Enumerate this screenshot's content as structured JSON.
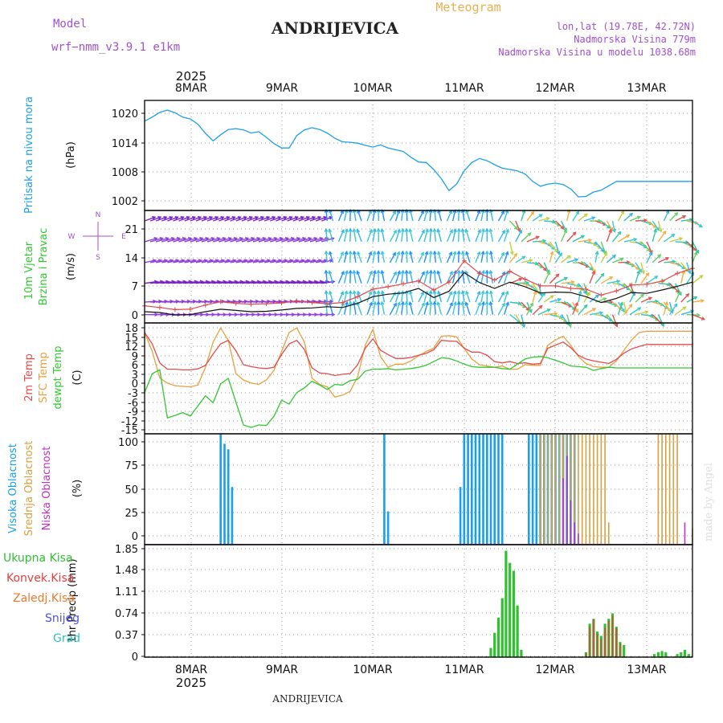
{
  "header": {
    "model_label": "Model",
    "model_name": "wrf−nmm_v3.9.1  e1km",
    "station": "ANDRIJEVICA",
    "product": "Meteogram",
    "lonlat": "lon,lat (19.78E, 42.72N)",
    "elevation": "Nadmorska Visina 779m",
    "model_elevation": "Nadmorska Visina u modelu 1038.68m",
    "footer_station": "ANDRIJEVICA",
    "credit": "made by Angel"
  },
  "time_axis": {
    "year": "2025",
    "labels": [
      "8MAR",
      "9MAR",
      "10MAR",
      "11MAR",
      "12MAR",
      "13MAR"
    ],
    "start_hours": 0,
    "end_hours": 144
  },
  "colors": {
    "pressure": "#1aa0e8",
    "temp2m": "#e84a4a",
    "sfc": "#e8a040",
    "dewpt": "#30c830",
    "wind10m": "#101010",
    "high_cloud": "#1aa0e8",
    "mid_cloud": "#d8a040",
    "low_cloud": "#c030c0",
    "total_precip": "#30c030",
    "convective": "#e04040",
    "freezing": "#f07828",
    "snow": "#5050e0",
    "hail": "#30c0c0",
    "wind_label": "#30c830",
    "axis_purple": "#a050d0"
  },
  "chart_data": [
    {
      "type": "line",
      "panel": "pressure",
      "ylabel_main": "Pritisak na nivou mora",
      "ylabel_unit": "(hPa)",
      "yticks": [
        "1020",
        "1014",
        "1008",
        "1002"
      ],
      "ylim": [
        999,
        1024
      ],
      "x": [
        0,
        2,
        4,
        6,
        8,
        10,
        12,
        14,
        16,
        18,
        20,
        22,
        24,
        26,
        28,
        30,
        32,
        34,
        36,
        38,
        40,
        42,
        44,
        46,
        48,
        50,
        52,
        54,
        56,
        58,
        60,
        62,
        64,
        66,
        68,
        70,
        72,
        74,
        76,
        78,
        80,
        82,
        84,
        86,
        88,
        90,
        92,
        94,
        96,
        98,
        100,
        102,
        104,
        106,
        108,
        110,
        112,
        114,
        116,
        118,
        120,
        122,
        124,
        126,
        128,
        130,
        132,
        134,
        136,
        138,
        140,
        142,
        144
      ],
      "series": [
        {
          "values": [
            1019.3,
            1020.2,
            1021.3,
            1021.8,
            1021.2,
            1020.2,
            1019.8,
            1018.6,
            1016.5,
            1014.8,
            1016.2,
            1017.4,
            1017.6,
            1017.3,
            1016.6,
            1016.9,
            1015.6,
            1014.2,
            1013.2,
            1013.2,
            1016.0,
            1017.3,
            1017.8,
            1017.4,
            1016.6,
            1015.4,
            1014.6,
            1014.5,
            1014.3,
            1013.8,
            1013.4,
            1013.9,
            1013.2,
            1012.8,
            1012.4,
            1011.1,
            1010.0,
            1009.9,
            1008.3,
            1006.2,
            1003.5,
            1005.0,
            1008.0,
            1009.9,
            1010.8,
            1010.3,
            1009.4,
            1008.6,
            1008.3,
            1008.0,
            1007.3,
            1005.6,
            1004.5,
            1005.0,
            1005.2,
            1004.9,
            1003.9,
            1002.1,
            1002.2,
            1003.2,
            1003.6,
            1004.6,
            1005.6,
            1005.6,
            1005.6,
            1005.6,
            1005.6,
            1005.6,
            1005.6,
            1005.6,
            1005.6,
            1005.6,
            1005.6
          ]
        }
      ]
    },
    {
      "type": "line",
      "panel": "wind",
      "ylabel_main": "10m Vjetar",
      "ylabel_sub": "Brzina i Pravac",
      "ylabel_unit": "(m/s)",
      "compass": [
        "N",
        "W",
        "E",
        "S"
      ],
      "yticks": [
        "21",
        "14",
        "7",
        "0"
      ],
      "ylim": [
        -1.5,
        25.5
      ],
      "x": [
        0,
        4,
        8,
        12,
        16,
        20,
        24,
        28,
        32,
        36,
        40,
        44,
        48,
        52,
        56,
        60,
        64,
        68,
        72,
        76,
        80,
        84,
        88,
        92,
        96,
        100,
        104,
        108,
        112,
        116,
        120,
        124,
        128,
        132,
        136,
        140,
        144
      ],
      "series": [
        {
          "values": [
            1.2,
            1.0,
            0.4,
            0.5,
            1.2,
            1.8,
            1.5,
            1.2,
            1.3,
            1.6,
            2.0,
            2.1,
            2.4,
            2.2,
            3.2,
            4.8,
            5.4,
            5.7,
            6.8,
            4.6,
            6.1,
            10.6,
            8.2,
            6.8,
            8.3,
            7.2,
            5.7,
            5.9,
            5.8,
            4.8,
            3.4,
            4.4,
            5.8,
            5.6,
            6.4,
            7.3,
            8.3
          ]
        },
        {
          "values": [
            2.6,
            2.2,
            1.7,
            1.8,
            2.8,
            3.6,
            3.2,
            3.0,
            3.1,
            3.3,
            3.8,
            3.4,
            3.1,
            3.4,
            4.8,
            6.6,
            7.2,
            7.9,
            8.6,
            6.4,
            8.3,
            13.4,
            10.4,
            8.8,
            10.9,
            9.0,
            7.4,
            7.4,
            6.8,
            6.6,
            5.2,
            6.2,
            7.6,
            7.8,
            8.5,
            10.4,
            11.6
          ]
        }
      ]
    },
    {
      "type": "line",
      "panel": "temperature",
      "ylabel_t2m": "2m Temp",
      "ylabel_sfc": "SFC Temp",
      "ylabel_dew": "dewpt Temp",
      "ylabel_unit": "(C)",
      "yticks": [
        "18",
        "15",
        "12",
        "9",
        "6",
        "3",
        "0",
        "-3",
        "-6",
        "-9",
        "-12",
        "-15"
      ],
      "ylim": [
        -16,
        19
      ],
      "x": [
        0,
        2,
        4,
        6,
        8,
        10,
        12,
        14,
        16,
        18,
        20,
        22,
        24,
        26,
        28,
        30,
        32,
        34,
        36,
        38,
        40,
        42,
        44,
        46,
        48,
        50,
        52,
        54,
        56,
        58,
        60,
        62,
        64,
        66,
        68,
        70,
        72,
        74,
        76,
        78,
        80,
        82,
        84,
        86,
        88,
        90,
        92,
        94,
        96,
        98,
        100,
        102,
        104,
        106,
        108,
        110,
        112,
        114,
        116,
        118,
        120,
        122,
        124,
        126,
        128,
        130,
        132,
        134,
        136,
        138,
        140,
        142,
        144
      ],
      "series": [
        {
          "values": [
            16.0,
            12.4,
            6.4,
            4.4,
            4.4,
            4.2,
            4.2,
            4.5,
            5.6,
            9.2,
            12.4,
            13.5,
            10.2,
            5.8,
            5.2,
            4.8,
            4.6,
            5.0,
            9.0,
            12.4,
            13.5,
            10.6,
            4.8,
            3.2,
            3.0,
            2.4,
            2.8,
            3.0,
            5.8,
            11.0,
            14.0,
            10.4,
            9.0,
            7.8,
            7.8,
            8.1,
            8.8,
            9.4,
            10.5,
            13.5,
            13.3,
            13.2,
            11.0,
            9.8,
            9.8,
            8.8,
            6.8,
            6.4,
            6.8,
            6.2,
            6.4,
            6.0,
            6.2,
            11.0,
            12.0,
            13.0,
            11.2,
            8.8,
            7.6,
            7.0,
            6.6,
            6.2,
            7.5,
            9.5,
            10.8,
            11.6,
            12.2,
            12.2,
            12.2,
            12.2,
            12.2,
            12.2,
            12.2
          ]
        },
        {
          "values": [
            16.0,
            10.0,
            1.6,
            0.0,
            -0.8,
            -1.0,
            -1.2,
            -0.6,
            5.0,
            13.0,
            17.4,
            13.5,
            3.0,
            1.0,
            0.0,
            -0.4,
            1.0,
            4.0,
            10.0,
            16.0,
            17.4,
            13.0,
            1.6,
            -0.4,
            -1.2,
            -4.4,
            -3.8,
            -2.6,
            2.0,
            12.0,
            17.0,
            8.4,
            5.0,
            6.0,
            6.0,
            7.0,
            8.6,
            10.0,
            11.0,
            14.8,
            15.0,
            14.6,
            11.0,
            7.6,
            5.8,
            5.4,
            5.0,
            5.4,
            4.4,
            4.4,
            5.8,
            5.6,
            5.6,
            12.0,
            13.6,
            14.8,
            12.0,
            8.4,
            6.2,
            5.2,
            5.0,
            5.0,
            7.0,
            10.4,
            13.6,
            16.0,
            16.4,
            16.4,
            16.4,
            16.4,
            16.4,
            16.4,
            16.4
          ]
        },
        {
          "values": [
            -3.0,
            3.0,
            4.2,
            -11.0,
            -10.2,
            -9.3,
            -10.4,
            -7.2,
            -4.0,
            -6.2,
            -0.2,
            1.5,
            -6.0,
            -13.2,
            -14.0,
            -13.2,
            -13.4,
            -10.5,
            -5.4,
            -6.6,
            -3.0,
            -1.5,
            0.6,
            -0.6,
            -2.0,
            -0.4,
            -0.6,
            0.8,
            1.2,
            3.8,
            4.4,
            4.4,
            4.6,
            4.2,
            4.4,
            4.6,
            5.0,
            5.6,
            6.8,
            8.0,
            7.8,
            7.0,
            6.0,
            5.2,
            5.0,
            5.0,
            5.0,
            4.6,
            4.4,
            6.0,
            7.6,
            8.2,
            8.4,
            8.0,
            7.2,
            6.4,
            5.4,
            5.2,
            5.0,
            4.0,
            4.6,
            5.0,
            4.8,
            4.8,
            4.8,
            4.8,
            4.8,
            4.8,
            4.8,
            4.8,
            4.8,
            4.8,
            4.8
          ]
        }
      ]
    },
    {
      "type": "bar",
      "panel": "cloud",
      "ylabel_high": "Visoka Oblacnost",
      "ylabel_mid": "Srednja Oblacnost",
      "ylabel_low": "Niska Oblacnost",
      "ylabel_unit": "(%)",
      "yticks": [
        "100",
        "75",
        "50",
        "25",
        "0"
      ],
      "ylim": [
        0,
        100
      ],
      "series": [
        {
          "x": [
            20,
            21,
            22,
            23,
            24,
            63,
            64,
            83,
            84,
            85,
            86,
            87,
            88,
            89,
            90,
            91,
            92,
            93,
            94,
            101,
            102,
            103,
            104,
            105,
            106,
            107,
            108,
            109,
            110,
            111,
            112,
            113
          ],
          "values": [
            100,
            91,
            86,
            52,
            0,
            100,
            30,
            52,
            100,
            100,
            100,
            100,
            100,
            100,
            100,
            100,
            100,
            100,
            100,
            100,
            100,
            100,
            100,
            100,
            100,
            100,
            100,
            100,
            100,
            100,
            100,
            100
          ]
        },
        {
          "x": [
            104,
            105,
            106,
            107,
            108,
            109,
            110,
            111,
            112,
            113,
            114,
            115,
            116,
            117,
            118,
            119,
            120,
            121,
            122,
            135,
            136,
            137,
            138,
            139,
            140,
            144
          ],
          "values": [
            100,
            100,
            100,
            100,
            100,
            100,
            100,
            100,
            100,
            100,
            100,
            100,
            100,
            100,
            100,
            100,
            100,
            100,
            20,
            100,
            100,
            100,
            100,
            100,
            100,
            15
          ]
        },
        {
          "x": [
            110,
            111,
            112,
            113,
            114,
            142
          ],
          "values": [
            60,
            80,
            40,
            20,
            10,
            20
          ]
        }
      ]
    },
    {
      "type": "bar",
      "panel": "precip",
      "legend": [
        "Ukupna Kisa",
        "Konvek.Kisa",
        "Zaledj.Kisa",
        "Snijeg",
        "Grad"
      ],
      "ylabel_unit": "1hr Precip (mm)",
      "yticks": [
        "1.85",
        "1.48",
        "1.11",
        "0.74",
        "0.37",
        "0"
      ],
      "ylim": [
        0,
        1.85
      ],
      "series": [
        {
          "x": [
            91,
            92,
            93,
            94,
            95,
            96,
            97,
            98,
            99,
            116,
            117,
            118,
            119,
            120,
            121,
            122,
            123,
            124,
            125,
            126,
            134,
            135,
            136,
            137,
            140,
            141,
            142,
            143
          ],
          "values": [
            0.15,
            0.4,
            0.65,
            0.97,
            1.75,
            1.55,
            1.42,
            0.85,
            0.12,
            0.08,
            0.55,
            0.63,
            0.42,
            0.35,
            0.55,
            0.63,
            0.72,
            0.5,
            0.25,
            0.2,
            0.05,
            0.08,
            0.1,
            0.08,
            0.05,
            0.08,
            0.12,
            0.05
          ]
        },
        {
          "x": [
            116,
            117,
            118,
            119,
            120,
            121,
            122,
            123,
            124,
            125
          ],
          "values": [
            0.05,
            0.5,
            0.62,
            0.38,
            0.3,
            0.48,
            0.6,
            0.68,
            0.48,
            0.22
          ]
        }
      ]
    }
  ]
}
